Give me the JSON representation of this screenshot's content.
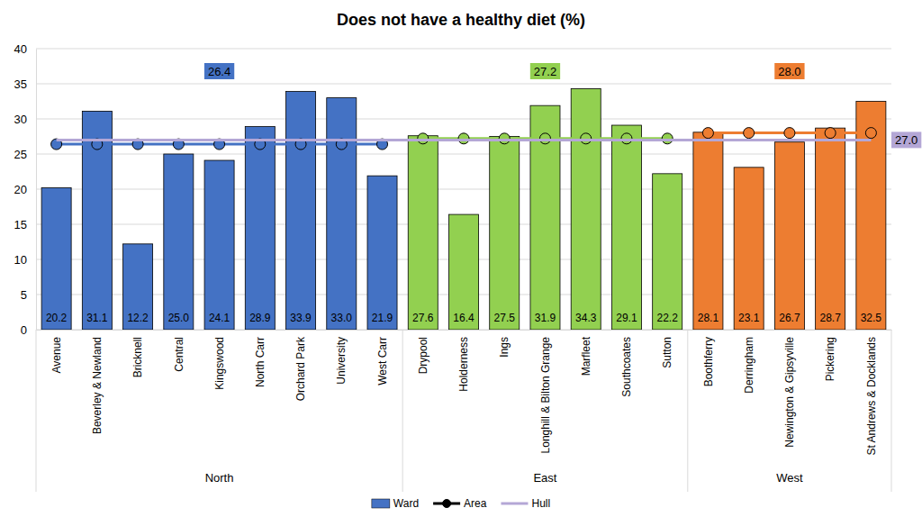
{
  "chart_data": {
    "type": "bar",
    "title": "Does not have a healthy diet (%)",
    "categories": [
      "Avenue",
      "Beverley & Newland",
      "Bricknell",
      "Central",
      "Kingswood",
      "North Carr",
      "Orchard Park",
      "University",
      "West Carr",
      "Drypool",
      "Holderness",
      "Ings",
      "Longhill & Bilton Grange",
      "Marfleet",
      "Southcoates",
      "Sutton",
      "Boothferry",
      "Derringham",
      "Newington & Gipsyville",
      "Pickering",
      "St Andrews & Docklands"
    ],
    "groups": [
      "North",
      "North",
      "North",
      "North",
      "North",
      "North",
      "North",
      "North",
      "North",
      "East",
      "East",
      "East",
      "East",
      "East",
      "East",
      "East",
      "West",
      "West",
      "West",
      "West",
      "West"
    ],
    "series": [
      {
        "name": "Ward",
        "type": "bar",
        "color": "#4472c4",
        "colors": [
          "#4472c4",
          "#4472c4",
          "#4472c4",
          "#4472c4",
          "#4472c4",
          "#4472c4",
          "#4472c4",
          "#4472c4",
          "#4472c4",
          "#92d050",
          "#92d050",
          "#92d050",
          "#92d050",
          "#92d050",
          "#92d050",
          "#92d050",
          "#ed7d31",
          "#ed7d31",
          "#ed7d31",
          "#ed7d31",
          "#ed7d31"
        ],
        "values": [
          20.2,
          31.1,
          12.2,
          25.0,
          24.1,
          28.9,
          33.9,
          33.0,
          21.9,
          27.6,
          16.4,
          27.5,
          31.9,
          34.3,
          29.1,
          22.2,
          28.1,
          23.1,
          26.7,
          28.7,
          32.5
        ],
        "value_labels": [
          "20.2",
          "31.1",
          "12.2",
          "25.0",
          "24.1",
          "28.9",
          "33.9",
          "33.0",
          "21.9",
          "27.6",
          "16.4",
          "27.5",
          "31.9",
          "34.3",
          "29.1",
          "22.2",
          "28.1",
          "23.1",
          "26.7",
          "28.7",
          "32.5"
        ]
      },
      {
        "name": "Area",
        "type": "line",
        "color": "#000000",
        "marker": "circle",
        "colors": [
          "#4472c4",
          "#4472c4",
          "#4472c4",
          "#4472c4",
          "#4472c4",
          "#4472c4",
          "#4472c4",
          "#4472c4",
          "#4472c4",
          "#92d050",
          "#92d050",
          "#92d050",
          "#92d050",
          "#92d050",
          "#92d050",
          "#92d050",
          "#ed7d31",
          "#ed7d31",
          "#ed7d31",
          "#ed7d31",
          "#ed7d31"
        ],
        "values": [
          26.4,
          26.4,
          26.4,
          26.4,
          26.4,
          26.4,
          26.4,
          26.4,
          26.4,
          27.2,
          27.2,
          27.2,
          27.2,
          27.2,
          27.2,
          27.2,
          28.0,
          28.0,
          28.0,
          28.0,
          28.0
        ],
        "value_labels": [
          "26.4",
          "26.4",
          "26.4",
          "26.4",
          "26.4",
          "26.4",
          "26.4",
          "26.4",
          "26.4",
          "27.2",
          "27.2",
          "27.2",
          "27.2",
          "27.2",
          "27.2",
          "27.2",
          "28.0",
          "28.0",
          "28.0",
          "28.0",
          "28.0"
        ]
      },
      {
        "name": "Hull",
        "type": "line",
        "color": "#b4a7d6",
        "values": [
          27.0,
          27.0,
          27.0,
          27.0,
          27.0,
          27.0,
          27.0,
          27.0,
          27.0,
          27.0,
          27.0,
          27.0,
          27.0,
          27.0,
          27.0,
          27.0,
          27.0,
          27.0,
          27.0,
          27.0,
          27.0
        ],
        "value_labels": [
          "27.0",
          "27.0",
          "27.0",
          "27.0",
          "27.0",
          "27.0",
          "27.0",
          "27.0",
          "27.0",
          "27.0",
          "27.0",
          "27.0",
          "27.0",
          "27.0",
          "27.0",
          "27.0",
          "27.0",
          "27.0",
          "27.0",
          "27.0",
          "27.0"
        ]
      }
    ],
    "ylim": [
      0,
      40
    ],
    "yticks": [
      0,
      5,
      10,
      15,
      20,
      25,
      30,
      35,
      40
    ],
    "grid": true,
    "legend": "bottom",
    "data_labels": true
  }
}
